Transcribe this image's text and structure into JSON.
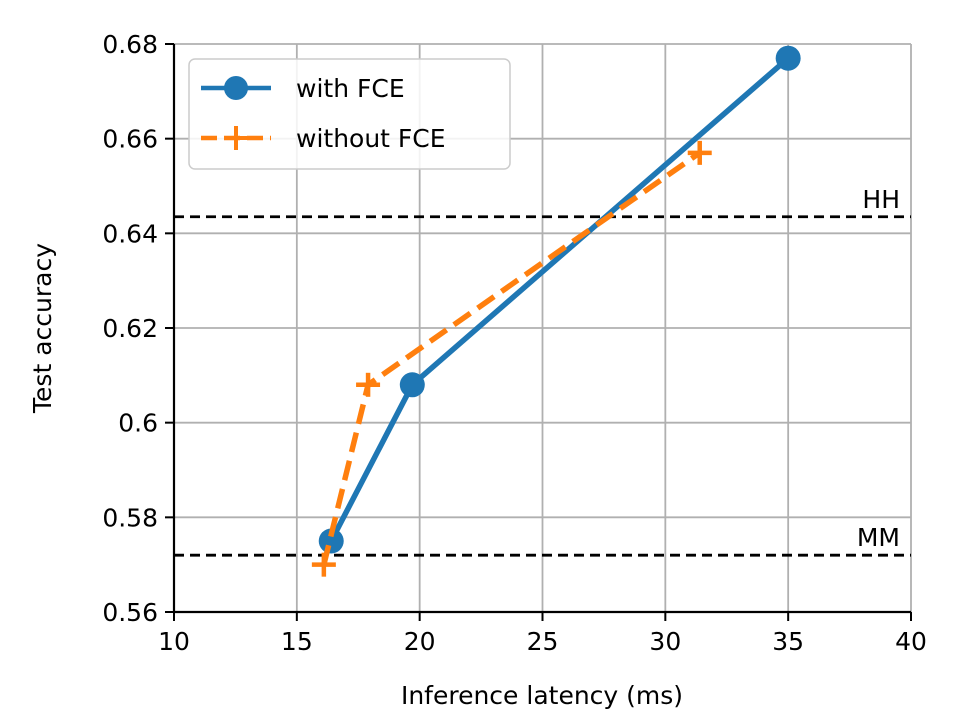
{
  "chart_data": {
    "type": "line",
    "title": "",
    "xlabel": "Inference latency (ms)",
    "ylabel": "Test accuracy",
    "xlim": [
      10,
      40
    ],
    "ylim": [
      0.56,
      0.68
    ],
    "xticks": [
      10,
      15,
      20,
      25,
      30,
      35,
      40
    ],
    "xtick_labels": [
      "10",
      "15",
      "20",
      "25",
      "30",
      "35",
      "40"
    ],
    "yticks": [
      0.56,
      0.58,
      0.6,
      0.62,
      0.64,
      0.66,
      0.68
    ],
    "ytick_labels": [
      "0.56",
      "0.58",
      "0.6",
      "0.62",
      "0.64",
      "0.66",
      "0.68"
    ],
    "grid": true,
    "legend_position": "top-left",
    "series": [
      {
        "name": "with FCE",
        "color": "#1f77b4",
        "line_style": "solid",
        "marker": "circle",
        "x": [
          16.4,
          19.7,
          35.0
        ],
        "y": [
          0.575,
          0.608,
          0.677
        ]
      },
      {
        "name": "without FCE",
        "color": "#ff7f0e",
        "line_style": "dashed",
        "marker": "plus",
        "x": [
          16.1,
          17.9,
          31.4
        ],
        "y": [
          0.57,
          0.608,
          0.657
        ]
      }
    ],
    "reference_lines": [
      {
        "label": "HH",
        "y": 0.6435,
        "color": "#000000",
        "line_style": "dashed"
      },
      {
        "label": "MM",
        "y": 0.572,
        "color": "#000000",
        "line_style": "dashed"
      }
    ]
  }
}
